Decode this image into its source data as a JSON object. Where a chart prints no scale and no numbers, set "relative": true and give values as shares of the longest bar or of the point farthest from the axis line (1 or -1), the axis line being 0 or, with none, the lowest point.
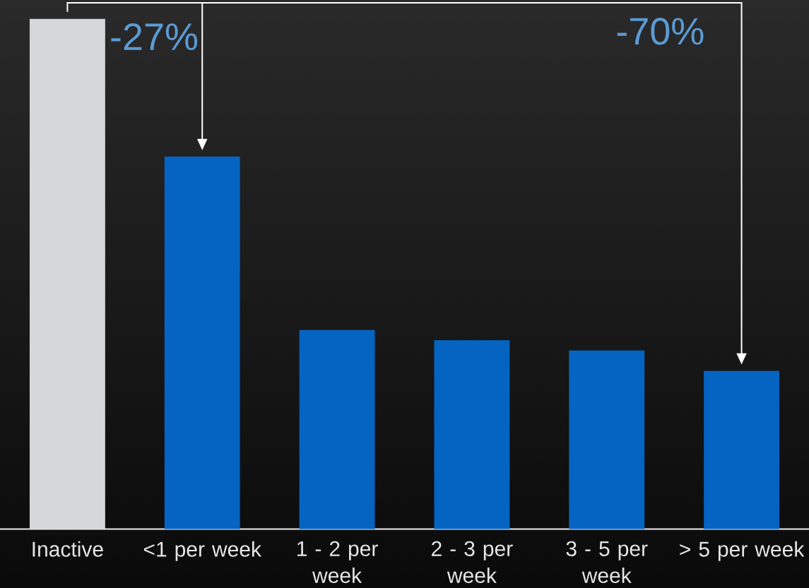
{
  "chart_data": {
    "type": "bar",
    "categories": [
      "Inactive",
      "<1 per week",
      "1 - 2 per week",
      "2 - 3 per week",
      "3 - 5 per week",
      "> 5 per week"
    ],
    "values": [
      1,
      0.73,
      0.39,
      0.37,
      0.35,
      0.31
    ],
    "colors": [
      "#d6d7d9",
      "#0563c1",
      "#0563c1",
      "#0563c1",
      "#0563c1",
      "#0563c1"
    ],
    "relative": true,
    "annotations": [
      "-27%",
      "-70%"
    ]
  }
}
